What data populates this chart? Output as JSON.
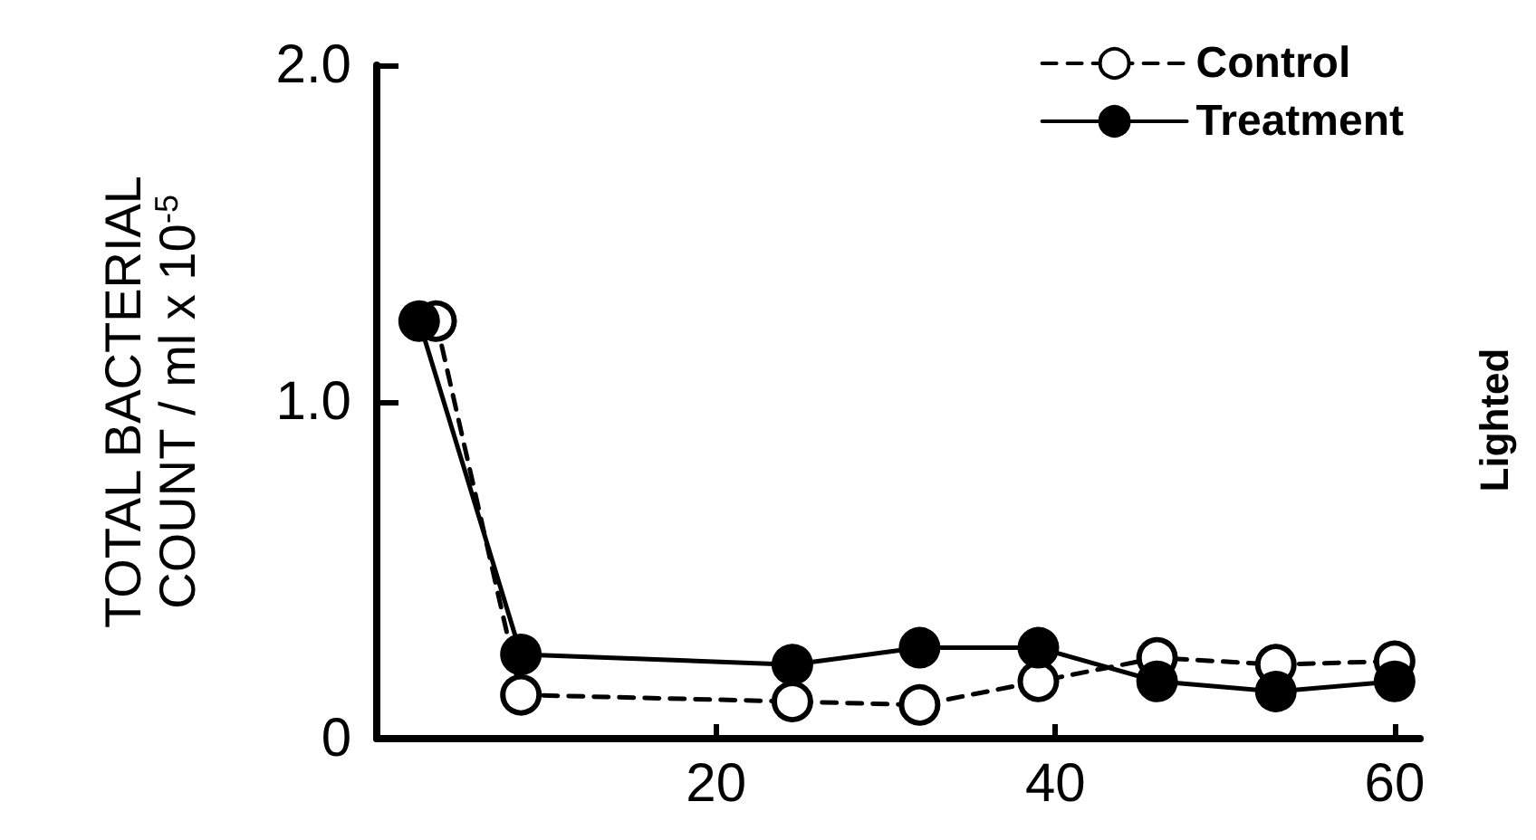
{
  "chart_data": {
    "type": "line",
    "ylabel": "TOTAL BACTERIAL\nCOUNT / ml x 10$^{-5}$",
    "xlim": [
      0,
      61.5
    ],
    "xticks": [
      20,
      40,
      60
    ],
    "ylim": [
      0,
      2.0
    ],
    "yticks": [
      0,
      {
        "value": 1.0,
        "label": "1.0"
      },
      {
        "value": 2.0,
        "label": "2.0"
      }
    ],
    "grid": false,
    "legend": "top right",
    "marker": "circle",
    "series": [
      {
        "name": "Control",
        "color": "#000000",
        "line_style": "dashed",
        "x": [
          3.5,
          8.5,
          24.5,
          32,
          39,
          46,
          53,
          60
        ],
        "values": [
          1.24,
          0.13,
          0.11,
          0.1,
          0.17,
          0.24,
          0.22,
          0.23
        ]
      },
      {
        "name": "Treatment",
        "color": "#000000",
        "line_style": "solid",
        "x": [
          2.5,
          8.5,
          24.5,
          32,
          39,
          46,
          53,
          60
        ],
        "values": [
          1.24,
          0.25,
          0.22,
          0.27,
          0.27,
          0.17,
          0.14,
          0.17
        ]
      }
    ],
    "annotations": [
      "Lighted"
    ]
  }
}
